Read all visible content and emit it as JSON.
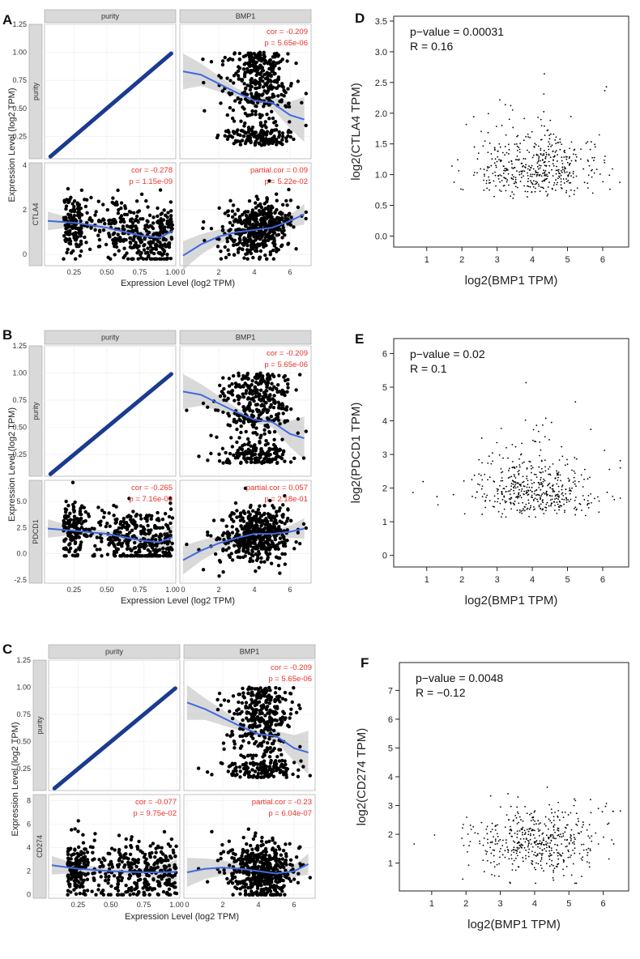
{
  "panel_letters": [
    "A",
    "B",
    "C",
    "D",
    "E",
    "F"
  ],
  "colors": {
    "fit": "#4169e1",
    "ci_band": "#bfbfbf",
    "annotation": "#e8332a",
    "points": "#000000",
    "diag_band": "#1a3b8f"
  },
  "timer_panels": [
    {
      "letter": "A",
      "gene": "CTLA4",
      "col_headers": [
        "purity",
        "BMP1"
      ],
      "row_labels": [
        "purity",
        "CTLA4"
      ],
      "y_label": "Expression Level (log2 TPM)",
      "x_label": "Expression Level (log2 TPM)",
      "top_y_ticks": [
        "0.25",
        "0.50",
        "0.75",
        "1.00",
        "1.25"
      ],
      "bottom_y_ticks": [
        "0",
        "2",
        "4"
      ],
      "purity_x_ticks": [
        "0.25",
        "0.50",
        "0.75",
        "1.00"
      ],
      "bmp1_x_ticks": [
        "0",
        "2",
        "4",
        "6"
      ],
      "bmp1_purity_cor": "cor = -0.209",
      "bmp1_purity_p": "p = 5.65e-06",
      "gene_purity_cor": "cor = -0.278",
      "gene_purity_p": "p = 1.15e-09",
      "partial_cor": "partial.cor = 0.09",
      "partial_p": "p = 5.22e-02"
    },
    {
      "letter": "B",
      "gene": "PDCD1",
      "col_headers": [
        "purity",
        "BMP1"
      ],
      "row_labels": [
        "purity",
        "PDCD1"
      ],
      "y_label": "Expression Level (log2 TPM)",
      "x_label": "Expression Level (log2 TPM)",
      "top_y_ticks": [
        "0.25",
        "0.50",
        "0.75",
        "1.00",
        "1.25"
      ],
      "bottom_y_ticks": [
        "-2.5",
        "0.0",
        "2.5",
        "5.0"
      ],
      "purity_x_ticks": [
        "0.25",
        "0.50",
        "0.75",
        "1.00"
      ],
      "bmp1_x_ticks": [
        "0",
        "2",
        "4",
        "6"
      ],
      "bmp1_purity_cor": "cor = -0.209",
      "bmp1_purity_p": "p = 5.65e-06",
      "gene_purity_cor": "cor = -0.265",
      "gene_purity_p": "p = 7.16e-09",
      "partial_cor": "partial.cor = 0.057",
      "partial_p": "p = 2.18e-01"
    },
    {
      "letter": "C",
      "gene": "CD274",
      "col_headers": [
        "purity",
        "BMP1"
      ],
      "row_labels": [
        "purity",
        "CD274"
      ],
      "y_label": "Expression Level (log2 TPM)",
      "x_label": "Expression Level (log2 TPM)",
      "top_y_ticks": [
        "0.25",
        "0.50",
        "0.75",
        "1.00",
        "1.25"
      ],
      "bottom_y_ticks": [
        "0",
        "2",
        "4",
        "6",
        "8"
      ],
      "purity_x_ticks": [
        "0.25",
        "0.50",
        "0.75",
        "1.00"
      ],
      "bmp1_x_ticks": [
        "0",
        "2",
        "4",
        "6"
      ],
      "bmp1_purity_cor": "cor = -0.209",
      "bmp1_purity_p": "p = 5.65e-06",
      "gene_purity_cor": "cor = -0.077",
      "gene_purity_p": "p = 9.75e-02",
      "partial_cor": "partial.cor = -0.23",
      "partial_p": "p = 6.04e-07"
    }
  ],
  "gepia_panels": [
    {
      "letter": "D",
      "x_label": "log2(BMP1 TPM)",
      "y_label": "log2(CTLA4 TPM)",
      "pvalue_text": "p−value = 0.00031",
      "r_text": "R = 0.16",
      "x_ticks": [
        "1",
        "2",
        "3",
        "4",
        "5",
        "6"
      ],
      "y_ticks": [
        "0.0",
        "0.5",
        "1.0",
        "1.5",
        "2.0",
        "2.5",
        "3.0",
        "3.5"
      ]
    },
    {
      "letter": "E",
      "x_label": "log2(BMP1 TPM)",
      "y_label": "log2(PDCD1 TPM)",
      "pvalue_text": "p−value = 0.02",
      "r_text": "R = 0.1",
      "x_ticks": [
        "1",
        "2",
        "3",
        "4",
        "5",
        "6"
      ],
      "y_ticks": [
        "0",
        "1",
        "2",
        "3",
        "4",
        "5",
        "6"
      ]
    },
    {
      "letter": "F",
      "x_label": "log2(BMP1 TPM)",
      "y_label": "log2(CD274 TPM)",
      "pvalue_text": "p−value = 0.0048",
      "r_text": "R = −0.12",
      "x_ticks": [
        "1",
        "2",
        "3",
        "4",
        "5",
        "6"
      ],
      "y_ticks": [
        "1",
        "2",
        "3",
        "4",
        "5",
        "6",
        "7"
      ]
    }
  ],
  "chart_data": [
    {
      "type": "scatter",
      "panel": "A",
      "facets": [
        "purity vs purity",
        "BMP1 vs purity",
        "purity vs CTLA4",
        "BMP1 vs CTLA4"
      ],
      "xlim_purity": [
        0.05,
        1.0
      ],
      "xlim_bmp1": [
        0,
        7
      ],
      "ylim_top": [
        0.05,
        1.25
      ],
      "ylim_bottom": [
        -0.5,
        4.1
      ],
      "point_count_estimate": 470,
      "fits": {
        "bmp1_purity": {
          "x": [
            0,
            1,
            2,
            3,
            4,
            5,
            6,
            6.8
          ],
          "y": [
            0.83,
            0.8,
            0.72,
            0.64,
            0.57,
            0.55,
            0.44,
            0.4
          ]
        },
        "purity_gene": {
          "x": [
            0.05,
            0.25,
            0.5,
            0.75,
            0.9,
            1.0
          ],
          "y": [
            1.5,
            1.42,
            1.2,
            0.85,
            0.75,
            1.05
          ]
        },
        "bmp1_gene": {
          "x": [
            0,
            1,
            2,
            3,
            4,
            5,
            6,
            6.8
          ],
          "y": [
            -0.05,
            0.45,
            0.8,
            1.0,
            1.1,
            1.2,
            1.5,
            1.8
          ]
        }
      }
    },
    {
      "type": "scatter",
      "panel": "B",
      "facets": [
        "purity vs purity",
        "BMP1 vs purity",
        "purity vs PDCD1",
        "BMP1 vs PDCD1"
      ],
      "xlim_purity": [
        0.05,
        1.0
      ],
      "xlim_bmp1": [
        0,
        7
      ],
      "ylim_top": [
        0.05,
        1.25
      ],
      "ylim_bottom": [
        -2.8,
        7
      ],
      "point_count_estimate": 470,
      "fits": {
        "bmp1_purity": {
          "x": [
            0,
            1,
            2,
            3,
            4,
            5,
            6,
            6.8
          ],
          "y": [
            0.83,
            0.8,
            0.72,
            0.64,
            0.57,
            0.55,
            0.44,
            0.4
          ]
        },
        "purity_gene": {
          "x": [
            0.05,
            0.25,
            0.5,
            0.75,
            0.9,
            1.0
          ],
          "y": [
            2.4,
            2.2,
            1.9,
            1.3,
            1.1,
            1.6
          ]
        },
        "bmp1_gene": {
          "x": [
            0,
            1,
            2,
            3,
            4,
            5,
            6,
            6.8
          ],
          "y": [
            -0.6,
            0.3,
            1.0,
            1.5,
            1.9,
            1.9,
            2.1,
            2.4
          ]
        }
      }
    },
    {
      "type": "scatter",
      "panel": "C",
      "facets": [
        "purity vs purity",
        "BMP1 vs purity",
        "purity vs CD274",
        "BMP1 vs CD274"
      ],
      "xlim_purity": [
        0.05,
        1.0
      ],
      "xlim_bmp1": [
        0,
        7
      ],
      "ylim_top": [
        0.05,
        1.25
      ],
      "ylim_bottom": [
        -0.3,
        8.5
      ],
      "point_count_estimate": 470,
      "fits": {
        "bmp1_purity": {
          "x": [
            0,
            1,
            2,
            3,
            4,
            5,
            6,
            6.8
          ],
          "y": [
            0.86,
            0.8,
            0.72,
            0.64,
            0.57,
            0.55,
            0.44,
            0.4
          ]
        },
        "purity_gene": {
          "x": [
            0.05,
            0.25,
            0.5,
            0.75,
            0.9,
            1.0
          ],
          "y": [
            2.5,
            2.2,
            2.0,
            1.9,
            1.9,
            1.95
          ]
        },
        "bmp1_gene": {
          "x": [
            0,
            1,
            2,
            3,
            4,
            5,
            6,
            6.8
          ],
          "y": [
            1.9,
            2.2,
            2.3,
            2.2,
            2.0,
            1.8,
            2.0,
            2.6
          ]
        }
      }
    },
    {
      "type": "scatter",
      "panel": "D",
      "xlim": [
        0.2,
        6.6
      ],
      "ylim": [
        -0.1,
        3.5
      ],
      "point_count_estimate": 480,
      "x_center": 4.1,
      "y_center": 0.8
    },
    {
      "type": "scatter",
      "panel": "E",
      "xlim": [
        0.2,
        6.6
      ],
      "ylim": [
        -0.2,
        6.3
      ],
      "point_count_estimate": 480,
      "x_center": 4.1,
      "y_center": 1.4
    },
    {
      "type": "scatter",
      "panel": "F",
      "xlim": [
        0.2,
        6.6
      ],
      "ylim": [
        0.2,
        7.8
      ],
      "point_count_estimate": 480,
      "x_center": 4.1,
      "y_center": 1.8
    }
  ]
}
